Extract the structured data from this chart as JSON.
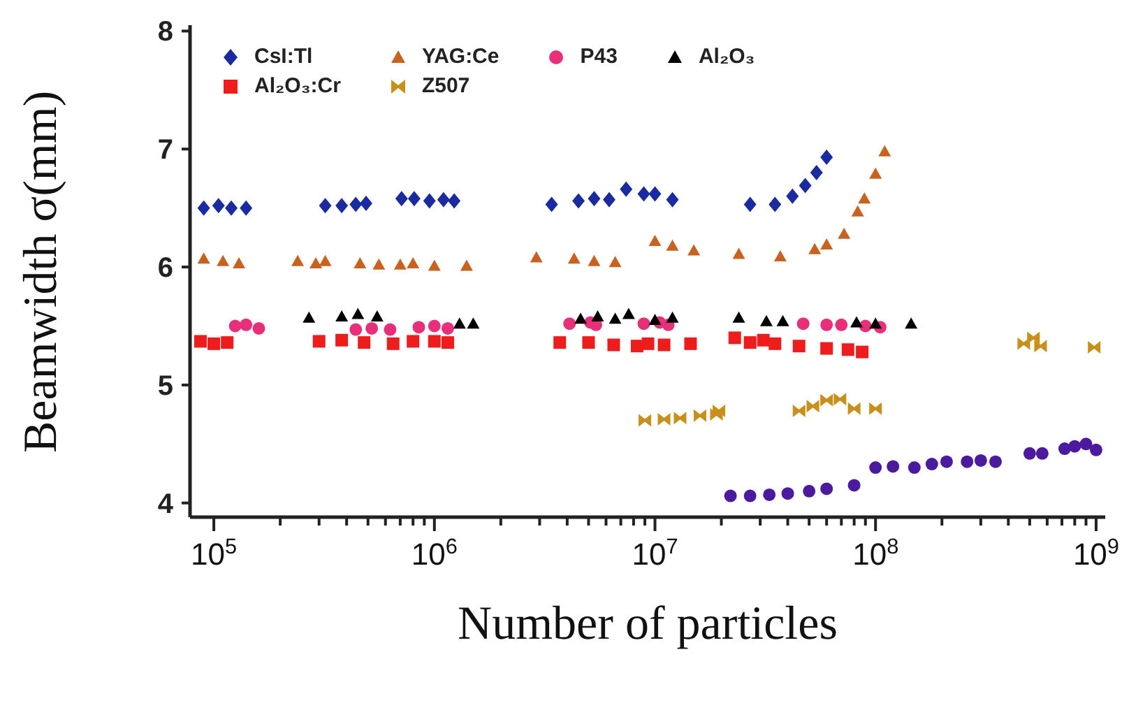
{
  "chart_data": {
    "type": "scatter",
    "xlabel": "Number of particles",
    "ylabel": "Beamwidth σ(mm)",
    "log": "x",
    "grid": false,
    "legend": "top",
    "xlim": [
      78000,
      1100000000
    ],
    "ylim": [
      3.88,
      8.05
    ],
    "xticks": [
      {
        "value": 100000,
        "label": "10$^{5}$"
      },
      {
        "value": 200000,
        "label": null
      },
      {
        "value": 300000,
        "label": null
      },
      {
        "value": 400000,
        "label": null
      },
      {
        "value": 500000,
        "label": null
      },
      {
        "value": 600000,
        "label": null
      },
      {
        "value": 700000,
        "label": null
      },
      {
        "value": 800000,
        "label": null
      },
      {
        "value": 900000,
        "label": null
      },
      {
        "value": 1000000,
        "label": "10$^{6}$"
      },
      {
        "value": 2000000,
        "label": null
      },
      {
        "value": 3000000,
        "label": null
      },
      {
        "value": 4000000,
        "label": null
      },
      {
        "value": 5000000,
        "label": null
      },
      {
        "value": 6000000,
        "label": null
      },
      {
        "value": 7000000,
        "label": null
      },
      {
        "value": 8000000,
        "label": null
      },
      {
        "value": 9000000,
        "label": null
      },
      {
        "value": 10000000,
        "label": "10$^{7}$"
      },
      {
        "value": 20000000,
        "label": null
      },
      {
        "value": 30000000,
        "label": null
      },
      {
        "value": 40000000,
        "label": null
      },
      {
        "value": 50000000,
        "label": null
      },
      {
        "value": 60000000,
        "label": null
      },
      {
        "value": 70000000,
        "label": null
      },
      {
        "value": 80000000,
        "label": null
      },
      {
        "value": 90000000,
        "label": null
      },
      {
        "value": 100000000,
        "label": "10$^{8}$"
      },
      {
        "value": 200000000,
        "label": null
      },
      {
        "value": 300000000,
        "label": null
      },
      {
        "value": 400000000,
        "label": null
      },
      {
        "value": 500000000,
        "label": null
      },
      {
        "value": 600000000,
        "label": null
      },
      {
        "value": 700000000,
        "label": null
      },
      {
        "value": 800000000,
        "label": null
      },
      {
        "value": 900000000,
        "label": null
      },
      {
        "value": 1000000000,
        "label": "10$^{9}$"
      }
    ],
    "yticks": [
      4,
      5,
      6,
      7,
      8
    ],
    "series": [
      {
        "name": "CsI:Tl",
        "color": "#1a2aa0",
        "marker": "diamond",
        "x": [
          90000,
          105000,
          120000,
          140000,
          320000,
          380000,
          440000,
          490000,
          710000,
          810000,
          950000,
          1100000,
          1230000,
          3400000,
          4500000,
          5300000,
          6200000,
          7400000,
          8900000,
          10000000,
          12000000,
          27000000,
          35000000,
          42000000,
          48000000,
          54000000,
          60000000
        ],
        "values": [
          6.5,
          6.52,
          6.5,
          6.5,
          6.52,
          6.52,
          6.53,
          6.54,
          6.58,
          6.58,
          6.56,
          6.57,
          6.56,
          6.53,
          6.56,
          6.58,
          6.57,
          6.66,
          6.62,
          6.62,
          6.57,
          6.53,
          6.53,
          6.6,
          6.69,
          6.8,
          6.93
        ]
      },
      {
        "name": "YAG:Ce",
        "color": "#c8621e",
        "marker": "triangle",
        "x": [
          90000,
          110000,
          130000,
          240000,
          290000,
          320000,
          460000,
          560000,
          700000,
          800000,
          1000000,
          1400000,
          2900000,
          4300000,
          5300000,
          6600000,
          10000000,
          12000000,
          15000000,
          24000000,
          37000000,
          53000000,
          60000000,
          72000000,
          83000000,
          89000000,
          100000000,
          110000000
        ],
        "values": [
          6.07,
          6.05,
          6.03,
          6.05,
          6.03,
          6.05,
          6.03,
          6.02,
          6.02,
          6.03,
          6.01,
          6.01,
          6.08,
          6.07,
          6.05,
          6.04,
          6.22,
          6.18,
          6.14,
          6.11,
          6.09,
          6.15,
          6.19,
          6.28,
          6.47,
          6.58,
          6.79,
          6.98
        ]
      },
      {
        "name": "P43",
        "color": "#e8307a",
        "marker": "circle",
        "x": [
          125000,
          140000,
          160000,
          440000,
          520000,
          630000,
          850000,
          1000000,
          1150000,
          4100000,
          5100000,
          5400000,
          8900000,
          10500000,
          11500000,
          47000000,
          60000000,
          70000000,
          90000000,
          105000000
        ],
        "values": [
          5.5,
          5.51,
          5.48,
          5.47,
          5.48,
          5.47,
          5.49,
          5.5,
          5.48,
          5.52,
          5.53,
          5.51,
          5.52,
          5.53,
          5.51,
          5.52,
          5.51,
          5.51,
          5.5,
          5.49
        ]
      },
      {
        "name": "Al₂O₃",
        "color": "#000000",
        "marker": "triangle",
        "x": [
          270000,
          380000,
          450000,
          550000,
          1300000,
          1500000,
          4600000,
          5500000,
          6600000,
          7600000,
          10000000,
          12000000,
          24000000,
          32000000,
          38000000,
          82000000,
          100000000,
          145000000
        ],
        "values": [
          5.57,
          5.58,
          5.6,
          5.58,
          5.52,
          5.52,
          5.56,
          5.58,
          5.56,
          5.6,
          5.55,
          5.57,
          5.57,
          5.54,
          5.54,
          5.53,
          5.52,
          5.52
        ]
      },
      {
        "name": "Al₂O₃:Cr",
        "color": "#ee1c1c",
        "marker": "square",
        "x": [
          87000,
          100000,
          115000,
          300000,
          380000,
          480000,
          650000,
          800000,
          1000000,
          1150000,
          3700000,
          5000000,
          6500000,
          8300000,
          9300000,
          11000000,
          14500000,
          23000000,
          27000000,
          31000000,
          35000000,
          45000000,
          60000000,
          75000000,
          87000000
        ],
        "values": [
          5.37,
          5.35,
          5.36,
          5.37,
          5.38,
          5.36,
          5.35,
          5.37,
          5.37,
          5.36,
          5.36,
          5.36,
          5.34,
          5.33,
          5.35,
          5.34,
          5.35,
          5.4,
          5.36,
          5.38,
          5.35,
          5.33,
          5.31,
          5.3,
          5.28
        ]
      },
      {
        "name": "Z507",
        "color": "#c8901a",
        "marker": "cross",
        "x": [
          9000000,
          11000000,
          13000000,
          16000000,
          19000000,
          19500000,
          45000000,
          52000000,
          60000000,
          69000000,
          80000000,
          100000000,
          470000000,
          520000000,
          560000000,
          980000000
        ],
        "values": [
          4.7,
          4.71,
          4.72,
          4.74,
          4.75,
          4.78,
          4.78,
          4.82,
          4.87,
          4.88,
          4.8,
          4.8,
          5.35,
          5.4,
          5.33,
          5.32
        ]
      },
      {
        "color": "#4b1a9e",
        "marker": "circle",
        "x": [
          22000000,
          27000000,
          33000000,
          40000000,
          50000000,
          60000000,
          80000000,
          100000000,
          120000000,
          150000000,
          180000000,
          210000000,
          260000000,
          300000000,
          350000000,
          500000000,
          570000000,
          720000000,
          800000000,
          900000000,
          1000000000
        ],
        "values": [
          4.06,
          4.06,
          4.07,
          4.08,
          4.1,
          4.12,
          4.15,
          4.3,
          4.31,
          4.3,
          4.33,
          4.35,
          4.35,
          4.36,
          4.35,
          4.42,
          4.42,
          4.46,
          4.48,
          4.5,
          4.45
        ]
      }
    ]
  }
}
